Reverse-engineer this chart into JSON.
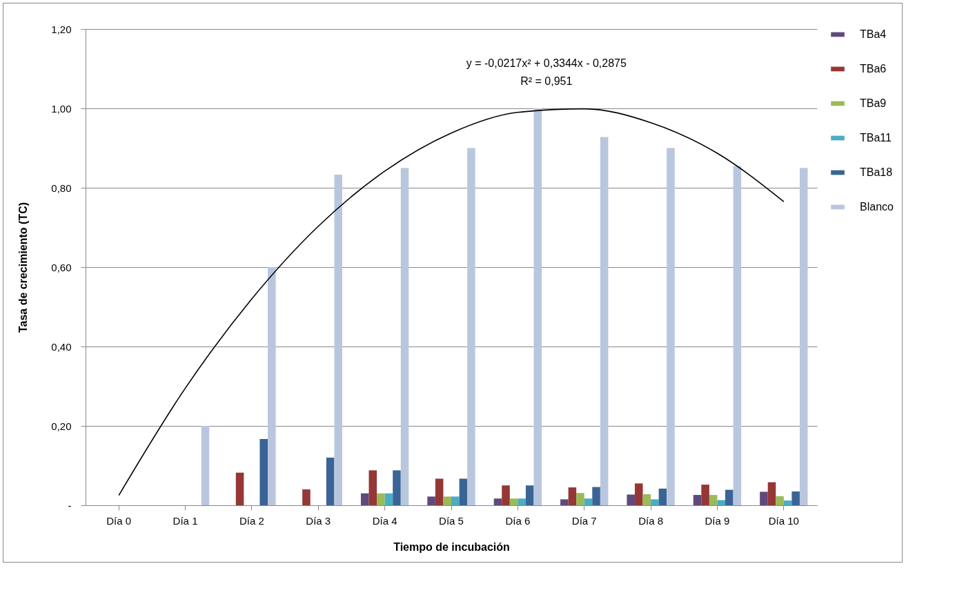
{
  "chart_data": {
    "type": "bar",
    "xlabel": "Tiempo de incubación",
    "ylabel": "Tasa de crecimiento (TC)",
    "categories": [
      "Día 0",
      "Día 1",
      "Día 2",
      "Día 3",
      "Día 4",
      "Día 5",
      "Día 6",
      "Día 7",
      "Día 8",
      "Día 9",
      "Día 10"
    ],
    "series": [
      {
        "name": "TBa4",
        "color": "#604a7b",
        "values": [
          null,
          null,
          null,
          null,
          0.03,
          0.022,
          0.017,
          0.015,
          0.027,
          0.026,
          0.034
        ]
      },
      {
        "name": "TBa6",
        "color": "#953735",
        "values": [
          null,
          null,
          0.082,
          0.04,
          0.088,
          0.067,
          0.05,
          0.045,
          0.055,
          0.052,
          0.058
        ]
      },
      {
        "name": "TBa9",
        "color": "#9bbb59",
        "values": [
          null,
          null,
          null,
          null,
          0.03,
          0.022,
          0.017,
          0.031,
          0.028,
          0.026,
          0.023
        ]
      },
      {
        "name": "TBa11",
        "color": "#4bacc6",
        "values": [
          null,
          null,
          null,
          null,
          0.03,
          0.022,
          0.017,
          0.017,
          0.015,
          0.013,
          0.012
        ]
      },
      {
        "name": "TBa18",
        "color": "#3a6495",
        "values": [
          null,
          null,
          0.167,
          0.12,
          0.088,
          0.067,
          0.05,
          0.046,
          0.042,
          0.039,
          0.035
        ]
      },
      {
        "name": "Blanco",
        "color": "#b9c7de",
        "values": [
          null,
          0.2,
          0.6,
          0.833,
          0.85,
          0.9,
          1.0,
          0.928,
          0.9,
          0.855,
          0.85
        ]
      },
      {
        "type": "line",
        "color": "#000000",
        "x": [
          "Día 0",
          "Día 1",
          "Día 2",
          "Día 3",
          "Día 4",
          "Día 5",
          "Día 6",
          "Día 7",
          "Día 8",
          "Día 9",
          "Día 10"
        ],
        "values": [
          0.025,
          0.295,
          0.52,
          0.703,
          0.842,
          0.938,
          0.99,
          0.999,
          0.964,
          0.887,
          0.765
        ]
      }
    ],
    "ylim": [
      0,
      1.2
    ],
    "yticks": [
      {
        "value": 0,
        "label": "-"
      },
      {
        "value": 0.2,
        "label": "0,20"
      },
      {
        "value": 0.4,
        "label": "0,40"
      },
      {
        "value": 0.6,
        "label": "0,60"
      },
      {
        "value": 0.8,
        "label": "0,80"
      },
      {
        "value": 1.0,
        "label": "1,00"
      },
      {
        "value": 1.2,
        "label": "1,20"
      }
    ],
    "annotations": [
      "y = -0,0217x² + 0,3344x - 0,2875",
      "R² = 0,951"
    ],
    "grid": "y",
    "legend": "right"
  }
}
